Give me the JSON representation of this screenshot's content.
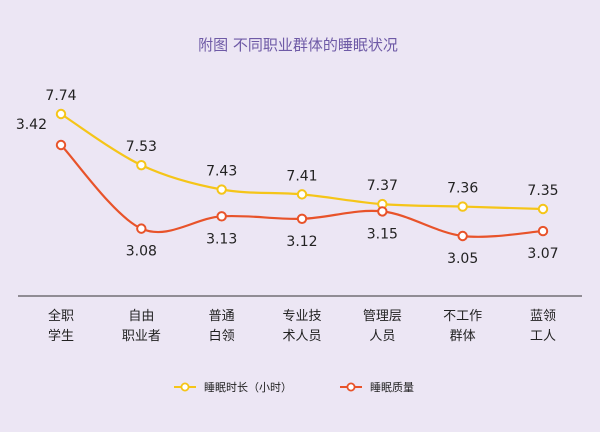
{
  "chart_data": {
    "type": "line",
    "title": "附图 不同职业群体的睡眠状况",
    "categories": [
      [
        "全职",
        "学生"
      ],
      [
        "自由",
        "职业者"
      ],
      [
        "普通",
        "白领"
      ],
      [
        "专业技",
        "术人员"
      ],
      [
        "管理层",
        "人员"
      ],
      [
        "不工作",
        "群体"
      ],
      [
        "蓝领",
        "工人"
      ]
    ],
    "series": [
      {
        "name": "睡眠时长（小时）",
        "color": "#f5c518",
        "values": [
          7.74,
          7.53,
          7.43,
          7.41,
          7.37,
          7.36,
          7.35
        ],
        "labels": [
          "7.74",
          "7.53",
          "7.43",
          "7.41",
          "7.37",
          "7.36",
          "7.35"
        ]
      },
      {
        "name": "睡眠质量",
        "color": "#e8532a",
        "values": [
          3.42,
          3.08,
          3.13,
          3.12,
          3.15,
          3.05,
          3.07
        ],
        "labels": [
          "3.42",
          "3.08",
          "3.13",
          "3.12",
          "3.15",
          "3.05",
          "3.07"
        ]
      }
    ],
    "grid": false,
    "legend": "bottom"
  }
}
